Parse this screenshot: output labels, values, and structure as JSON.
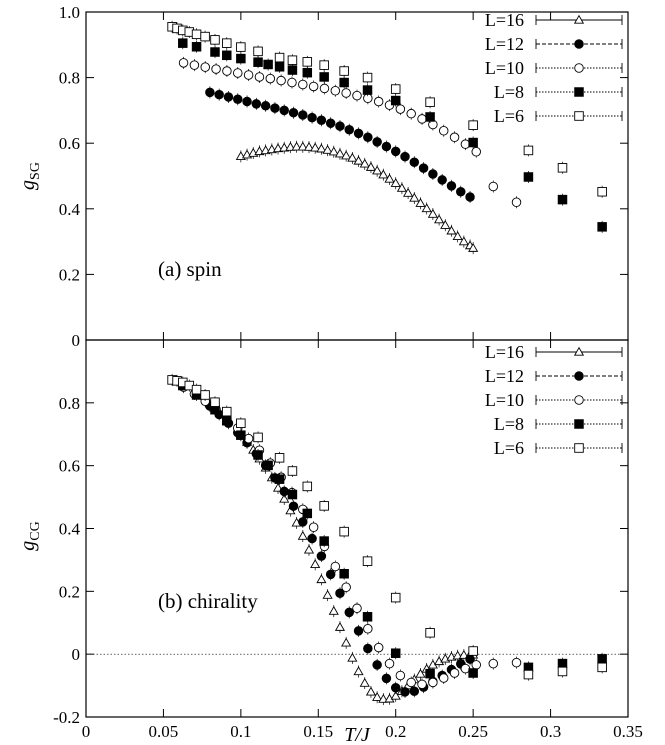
{
  "chart_data": [
    {
      "type": "scatter",
      "panel_label": "(a) spin",
      "ylabel_main": "g",
      "ylabel_sub": "SG",
      "xlim": [
        0,
        0.35
      ],
      "ylim": [
        0,
        1.0
      ],
      "yticks": [
        "0",
        "0.2",
        "0.4",
        "0.6",
        "0.8",
        "1.0"
      ],
      "ytick_values": [
        0,
        0.2,
        0.4,
        0.6,
        0.8,
        1.0
      ],
      "legend_placement": "top-right",
      "series": [
        {
          "name": "L=16",
          "marker": "open-triangle",
          "x": [
            0.1,
            0.104,
            0.108,
            0.112,
            0.116,
            0.12,
            0.124,
            0.128,
            0.132,
            0.136,
            0.14,
            0.144,
            0.148,
            0.152,
            0.156,
            0.16,
            0.164,
            0.168,
            0.172,
            0.176,
            0.18,
            0.184,
            0.188,
            0.192,
            0.196,
            0.2,
            0.204,
            0.208,
            0.212,
            0.216,
            0.22,
            0.224,
            0.228,
            0.232,
            0.236,
            0.24,
            0.244,
            0.248,
            0.25
          ],
          "y": [
            0.56,
            0.565,
            0.57,
            0.575,
            0.578,
            0.581,
            0.584,
            0.586,
            0.588,
            0.589,
            0.589,
            0.588,
            0.586,
            0.583,
            0.579,
            0.574,
            0.568,
            0.562,
            0.555,
            0.546,
            0.537,
            0.527,
            0.516,
            0.504,
            0.491,
            0.478,
            0.463,
            0.448,
            0.433,
            0.417,
            0.401,
            0.384,
            0.367,
            0.35,
            0.333,
            0.316,
            0.3,
            0.288,
            0.28
          ]
        },
        {
          "name": "L=12",
          "marker": "filled-circle",
          "x": [
            0.08,
            0.086,
            0.092,
            0.098,
            0.104,
            0.11,
            0.116,
            0.122,
            0.128,
            0.134,
            0.14,
            0.146,
            0.152,
            0.158,
            0.164,
            0.17,
            0.176,
            0.182,
            0.188,
            0.194,
            0.2,
            0.206,
            0.212,
            0.218,
            0.224,
            0.23,
            0.236,
            0.242,
            0.248
          ],
          "y": [
            0.755,
            0.748,
            0.741,
            0.734,
            0.727,
            0.72,
            0.714,
            0.707,
            0.7,
            0.693,
            0.686,
            0.678,
            0.67,
            0.661,
            0.652,
            0.641,
            0.63,
            0.618,
            0.604,
            0.59,
            0.575,
            0.559,
            0.542,
            0.524,
            0.506,
            0.488,
            0.47,
            0.452,
            0.436
          ]
        },
        {
          "name": "L=10",
          "marker": "open-circle",
          "x": [
            0.063,
            0.07,
            0.077,
            0.084,
            0.091,
            0.098,
            0.105,
            0.112,
            0.119,
            0.126,
            0.133,
            0.14,
            0.147,
            0.154,
            0.161,
            0.168,
            0.175,
            0.182,
            0.189,
            0.196,
            0.203,
            0.21,
            0.217,
            0.224,
            0.231,
            0.238,
            0.245,
            0.252,
            0.263,
            0.278
          ],
          "y": [
            0.845,
            0.838,
            0.832,
            0.826,
            0.82,
            0.814,
            0.808,
            0.802,
            0.797,
            0.791,
            0.785,
            0.779,
            0.773,
            0.767,
            0.76,
            0.753,
            0.745,
            0.737,
            0.727,
            0.716,
            0.704,
            0.69,
            0.674,
            0.657,
            0.638,
            0.618,
            0.597,
            0.574,
            0.468,
            0.42
          ]
        },
        {
          "name": "L=8",
          "marker": "filled-square",
          "x": [
            0.0625,
            0.0714,
            0.0833,
            0.0909,
            0.1,
            0.1111,
            0.1176,
            0.125,
            0.1333,
            0.1429,
            0.1538,
            0.1667,
            0.1818,
            0.2,
            0.2222,
            0.25,
            0.2857,
            0.3077,
            0.3333
          ],
          "y": [
            0.905,
            0.894,
            0.878,
            0.868,
            0.858,
            0.847,
            0.84,
            0.833,
            0.823,
            0.815,
            0.802,
            0.785,
            0.762,
            0.73,
            0.68,
            0.602,
            0.497,
            0.428,
            0.345
          ]
        },
        {
          "name": "L=6",
          "marker": "open-square",
          "x": [
            0.0556,
            0.0588,
            0.0625,
            0.0667,
            0.0714,
            0.0769,
            0.0833,
            0.0909,
            0.1,
            0.1111,
            0.125,
            0.1333,
            0.1429,
            0.1538,
            0.1667,
            0.1818,
            0.2,
            0.2222,
            0.25,
            0.2857,
            0.3077,
            0.3333
          ],
          "y": [
            0.955,
            0.95,
            0.944,
            0.939,
            0.932,
            0.925,
            0.915,
            0.905,
            0.893,
            0.88,
            0.861,
            0.853,
            0.848,
            0.838,
            0.82,
            0.8,
            0.765,
            0.725,
            0.655,
            0.578,
            0.525,
            0.452
          ]
        }
      ]
    },
    {
      "type": "scatter",
      "panel_label": "(b) chirality",
      "ylabel_main": "g",
      "ylabel_sub": "CG",
      "xlabel": "T/J",
      "xlim": [
        0,
        0.35
      ],
      "ylim": [
        -0.2,
        1.0
      ],
      "xticks": [
        "0",
        "0.05",
        "0.1",
        "0.15",
        "0.2",
        "0.25",
        "0.3",
        "0.35"
      ],
      "xtick_values": [
        0,
        0.05,
        0.1,
        0.15,
        0.2,
        0.25,
        0.3,
        0.35
      ],
      "yticks": [
        "-0.2",
        "0",
        "0.2",
        "0.4",
        "0.6",
        "0.8"
      ],
      "ytick_values": [
        -0.2,
        0,
        0.2,
        0.4,
        0.6,
        0.8
      ],
      "zero_line": true,
      "legend_placement": "top-right",
      "series": [
        {
          "name": "L=16",
          "marker": "open-triangle",
          "x": [
            0.1,
            0.104,
            0.108,
            0.112,
            0.116,
            0.12,
            0.124,
            0.128,
            0.132,
            0.136,
            0.14,
            0.144,
            0.148,
            0.152,
            0.156,
            0.16,
            0.164,
            0.168,
            0.172,
            0.176,
            0.18,
            0.184,
            0.188,
            0.192,
            0.196,
            0.2,
            0.204,
            0.208,
            0.212,
            0.216,
            0.22,
            0.224,
            0.228,
            0.232,
            0.236,
            0.24,
            0.244,
            0.248,
            0.25
          ],
          "y": [
            0.7,
            0.675,
            0.65,
            0.622,
            0.593,
            0.562,
            0.529,
            0.494,
            0.457,
            0.418,
            0.376,
            0.332,
            0.286,
            0.238,
            0.188,
            0.137,
            0.086,
            0.036,
            -0.012,
            -0.055,
            -0.092,
            -0.12,
            -0.137,
            -0.143,
            -0.142,
            -0.133,
            -0.118,
            -0.1,
            -0.081,
            -0.063,
            -0.047,
            -0.034,
            -0.023,
            -0.015,
            -0.009,
            -0.005,
            -0.003,
            -0.002,
            -0.002
          ]
        },
        {
          "name": "L=12",
          "marker": "filled-circle",
          "x": [
            0.08,
            0.086,
            0.092,
            0.098,
            0.104,
            0.11,
            0.116,
            0.122,
            0.128,
            0.134,
            0.14,
            0.146,
            0.152,
            0.158,
            0.164,
            0.17,
            0.176,
            0.182,
            0.188,
            0.194,
            0.2,
            0.206,
            0.212,
            0.218,
            0.224,
            0.23,
            0.236,
            0.242,
            0.248
          ],
          "y": [
            0.79,
            0.763,
            0.735,
            0.705,
            0.673,
            0.638,
            0.601,
            0.561,
            0.518,
            0.471,
            0.421,
            0.368,
            0.312,
            0.254,
            0.194,
            0.133,
            0.074,
            0.018,
            -0.034,
            -0.077,
            -0.107,
            -0.12,
            -0.118,
            -0.105,
            -0.087,
            -0.068,
            -0.049,
            -0.031,
            -0.016
          ]
        },
        {
          "name": "L=10",
          "marker": "open-circle",
          "x": [
            0.063,
            0.07,
            0.077,
            0.084,
            0.091,
            0.098,
            0.105,
            0.112,
            0.119,
            0.126,
            0.133,
            0.14,
            0.147,
            0.154,
            0.161,
            0.168,
            0.175,
            0.182,
            0.189,
            0.196,
            0.203,
            0.21,
            0.217,
            0.224,
            0.231,
            0.238,
            0.245,
            0.252,
            0.263,
            0.278
          ],
          "y": [
            0.85,
            0.828,
            0.805,
            0.779,
            0.751,
            0.72,
            0.686,
            0.649,
            0.608,
            0.563,
            0.514,
            0.461,
            0.404,
            0.343,
            0.279,
            0.213,
            0.146,
            0.081,
            0.021,
            -0.03,
            -0.068,
            -0.09,
            -0.096,
            -0.09,
            -0.076,
            -0.06,
            -0.046,
            -0.034,
            -0.03,
            -0.027
          ]
        },
        {
          "name": "L=8",
          "marker": "filled-square",
          "x": [
            0.0625,
            0.0714,
            0.0833,
            0.0909,
            0.1,
            0.1111,
            0.1176,
            0.125,
            0.1333,
            0.1429,
            0.1538,
            0.1667,
            0.1818,
            0.2,
            0.2222,
            0.25,
            0.2857,
            0.3077,
            0.3333
          ],
          "y": [
            0.855,
            0.825,
            0.778,
            0.743,
            0.697,
            0.634,
            0.601,
            0.557,
            0.508,
            0.448,
            0.36,
            0.256,
            0.119,
            0.003,
            -0.062,
            -0.06,
            -0.042,
            -0.03,
            -0.015
          ]
        },
        {
          "name": "L=6",
          "marker": "open-square",
          "x": [
            0.0556,
            0.0588,
            0.0625,
            0.0667,
            0.0714,
            0.0769,
            0.0833,
            0.0909,
            0.1,
            0.1111,
            0.125,
            0.1333,
            0.1429,
            0.1538,
            0.1667,
            0.1818,
            0.2,
            0.2222,
            0.25,
            0.2857,
            0.3077,
            0.3333
          ],
          "y": [
            0.873,
            0.87,
            0.865,
            0.855,
            0.842,
            0.825,
            0.802,
            0.772,
            0.735,
            0.69,
            0.625,
            0.583,
            0.534,
            0.472,
            0.39,
            0.296,
            0.18,
            0.068,
            0.01,
            -0.065,
            -0.055,
            -0.042
          ]
        }
      ]
    }
  ]
}
